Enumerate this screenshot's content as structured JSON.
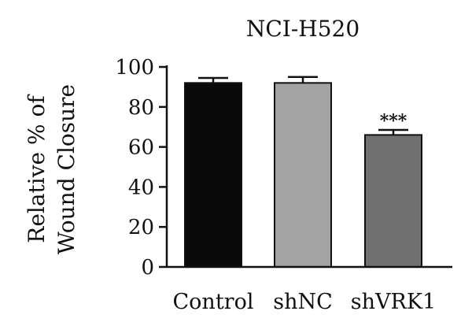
{
  "chart_data": {
    "type": "bar",
    "title": "NCI-H520",
    "ylabel": [
      "Relative % of",
      "Wound Closure"
    ],
    "xlabel": "",
    "categories": [
      "Control",
      "shNC",
      "shVRK1"
    ],
    "values": [
      92,
      92,
      66
    ],
    "errors": [
      2.5,
      3,
      2.5
    ],
    "bar_colors": [
      "#0a0a0a",
      "#a3a3a3",
      "#707070"
    ],
    "annotations": [
      "",
      "",
      "***"
    ],
    "ylim": [
      0,
      100
    ],
    "yticks": [
      0,
      20,
      40,
      60,
      80,
      100
    ],
    "ytick_labels": [
      "0",
      "20",
      "40",
      "60",
      "80",
      "100"
    ],
    "grid": false,
    "legend": false
  }
}
